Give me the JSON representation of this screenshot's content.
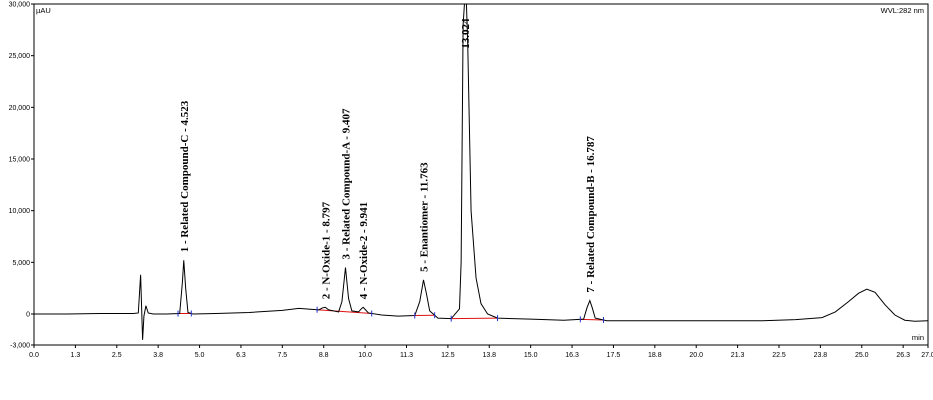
{
  "chart_data": {
    "type": "line",
    "title": "",
    "y_unit_label": "µAU",
    "wavelength_label": "WVL:282 nm",
    "x_unit_label": "min",
    "xlim": [
      0.0,
      27.0
    ],
    "ylim": [
      -3000,
      30000
    ],
    "x_ticks": [
      "0.0",
      "1.3",
      "2.5",
      "3.8",
      "5.0",
      "6.3",
      "7.5",
      "8.8",
      "10.0",
      "11.3",
      "12.5",
      "13.8",
      "15.0",
      "16.3",
      "17.5",
      "18.8",
      "20.0",
      "21.3",
      "22.5",
      "23.8",
      "25.0",
      "26.3",
      "27.0"
    ],
    "x_tick_values": [
      0.0,
      1.25,
      2.5,
      3.75,
      5.0,
      6.25,
      7.5,
      8.75,
      10.0,
      11.25,
      12.5,
      13.75,
      15.0,
      16.25,
      17.5,
      18.75,
      20.0,
      21.25,
      22.5,
      23.75,
      25.0,
      26.25,
      27.0
    ],
    "y_ticks": [
      "30,000",
      "25,000",
      "20,000",
      "15,000",
      "10,000",
      "5,000",
      "0",
      "-3,000"
    ],
    "y_tick_values": [
      30000,
      25000,
      20000,
      15000,
      10000,
      5000,
      0,
      -3000
    ],
    "peaks": [
      {
        "rt": 4.523,
        "height": 5200,
        "label": "1 - Related Compound-C - 4.523"
      },
      {
        "rt": 8.797,
        "height": 650,
        "label": "2 - N-Oxide-1 - 8.797"
      },
      {
        "rt": 9.407,
        "height": 4500,
        "label": "3 - Related Compound-A - 9.407"
      },
      {
        "rt": 9.941,
        "height": 650,
        "label": "4 - N-Oxide-2 - 9.941"
      },
      {
        "rt": 11.763,
        "height": 3300,
        "label": "5 - Enantiomer - 11.763"
      },
      {
        "rt": 13.024,
        "height": 30000,
        "label": "13.024"
      },
      {
        "rt": 16.787,
        "height": 1300,
        "label": "7 - Related Compound-B - 16.787"
      }
    ],
    "trace": [
      [
        0.0,
        0
      ],
      [
        1.0,
        0
      ],
      [
        2.0,
        50
      ],
      [
        3.0,
        50
      ],
      [
        3.15,
        100
      ],
      [
        3.22,
        3800
      ],
      [
        3.28,
        -2500
      ],
      [
        3.32,
        -200
      ],
      [
        3.38,
        800
      ],
      [
        3.45,
        100
      ],
      [
        3.6,
        0
      ],
      [
        4.0,
        0
      ],
      [
        4.4,
        50
      ],
      [
        4.48,
        3000
      ],
      [
        4.523,
        5200
      ],
      [
        4.58,
        2500
      ],
      [
        4.65,
        150
      ],
      [
        4.8,
        0
      ],
      [
        5.5,
        50
      ],
      [
        6.5,
        150
      ],
      [
        7.5,
        350
      ],
      [
        8.0,
        550
      ],
      [
        8.4,
        450
      ],
      [
        8.6,
        400
      ],
      [
        8.72,
        600
      ],
      [
        8.797,
        650
      ],
      [
        8.9,
        400
      ],
      [
        9.2,
        200
      ],
      [
        9.3,
        1200
      ],
      [
        9.407,
        4500
      ],
      [
        9.5,
        1500
      ],
      [
        9.6,
        300
      ],
      [
        9.8,
        200
      ],
      [
        9.9,
        550
      ],
      [
        9.941,
        650
      ],
      [
        10.0,
        450
      ],
      [
        10.1,
        100
      ],
      [
        10.5,
        -100
      ],
      [
        11.0,
        -200
      ],
      [
        11.5,
        -150
      ],
      [
        11.65,
        1200
      ],
      [
        11.763,
        3300
      ],
      [
        11.85,
        2000
      ],
      [
        11.95,
        300
      ],
      [
        12.2,
        -400
      ],
      [
        12.6,
        -450
      ],
      [
        12.85,
        500
      ],
      [
        12.9,
        5000
      ],
      [
        12.96,
        28000
      ],
      [
        13.0,
        30000
      ],
      [
        13.024,
        30000
      ],
      [
        13.06,
        30000
      ],
      [
        13.1,
        26000
      ],
      [
        13.2,
        10000
      ],
      [
        13.35,
        3500
      ],
      [
        13.5,
        1000
      ],
      [
        13.7,
        0
      ],
      [
        14.0,
        -400
      ],
      [
        15.0,
        -500
      ],
      [
        16.0,
        -600
      ],
      [
        16.6,
        -500
      ],
      [
        16.7,
        600
      ],
      [
        16.787,
        1300
      ],
      [
        16.86,
        600
      ],
      [
        16.95,
        -400
      ],
      [
        17.3,
        -650
      ],
      [
        18.0,
        -650
      ],
      [
        20.0,
        -650
      ],
      [
        22.0,
        -650
      ],
      [
        23.0,
        -550
      ],
      [
        23.8,
        -350
      ],
      [
        24.2,
        200
      ],
      [
        24.6,
        1200
      ],
      [
        24.9,
        2000
      ],
      [
        25.15,
        2400
      ],
      [
        25.4,
        2100
      ],
      [
        25.7,
        900
      ],
      [
        26.0,
        -100
      ],
      [
        26.3,
        -600
      ],
      [
        26.6,
        -700
      ],
      [
        27.0,
        -650
      ]
    ]
  }
}
